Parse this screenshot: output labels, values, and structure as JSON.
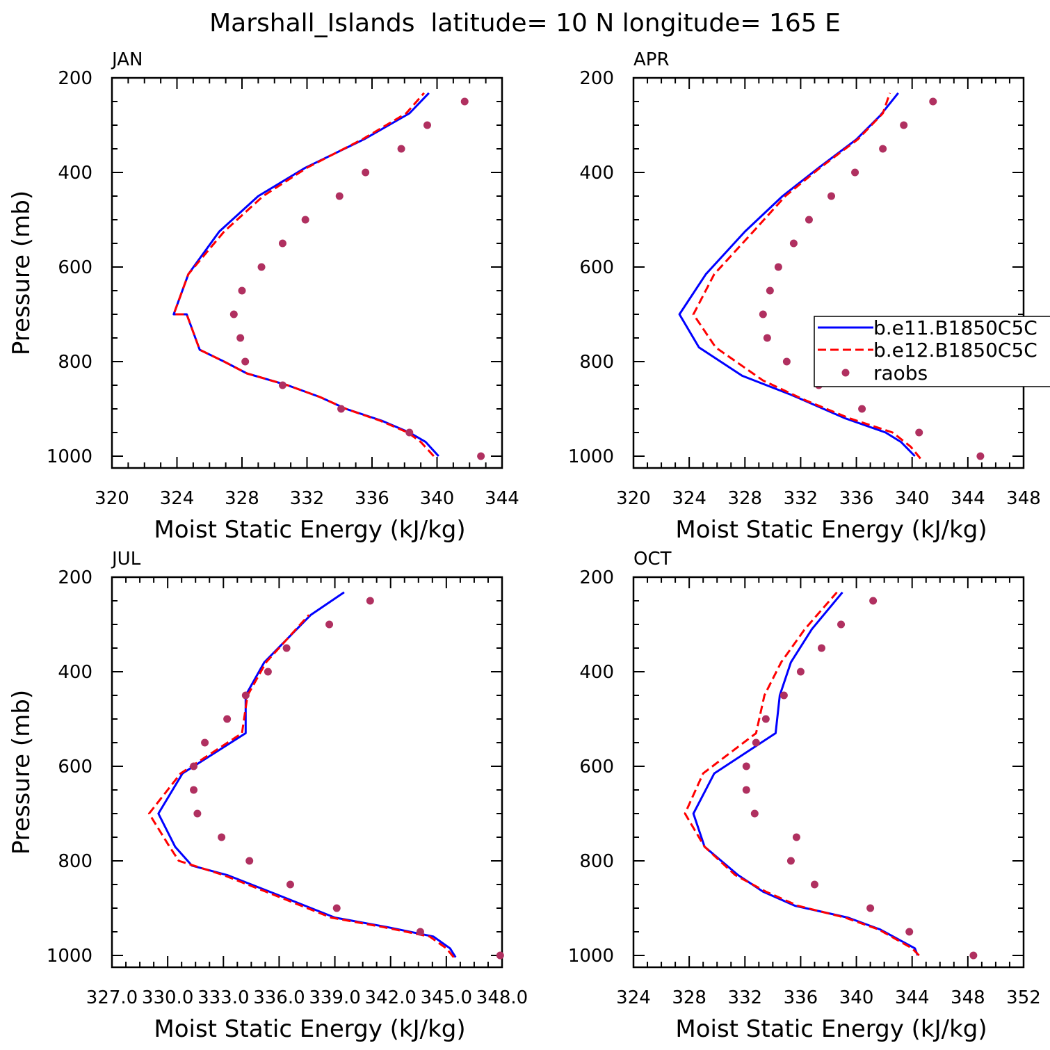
{
  "title": "Marshall_Islands  latitude= 10 N longitude= 165 E",
  "colors": {
    "case1": "#0000ff",
    "case2": "#ff0000",
    "raobs": "#b03060",
    "axis": "#000000"
  },
  "legend": {
    "entries": [
      "b.e11.B1850C5C",
      "b.e12.B1850C5C",
      "raobs"
    ],
    "placement": "right-middle of APR panel"
  },
  "chart_data": [
    {
      "type": "line",
      "panel": "JAN",
      "xlabel": "Moist Static Energy (kJ/kg)",
      "ylabel": "Pressure (mb)",
      "xlim": [
        320,
        344
      ],
      "ylim": [
        1025,
        200
      ],
      "y_inverted": true,
      "xticks": [
        "320",
        "324",
        "328",
        "332",
        "336",
        "340",
        "344"
      ],
      "yticks": [
        "200",
        "400",
        "600",
        "800",
        "1000"
      ],
      "series": [
        {
          "name": "b.e11.B1850C5C",
          "style": "solid",
          "x": [
            340.1,
            339.3,
            338.3,
            336.6,
            334.4,
            332.8,
            330.8,
            328.3,
            326.9,
            325.4,
            324.6,
            323.8,
            324.7,
            326.6,
            329.0,
            331.9,
            335.5,
            338.3,
            339.5
          ],
          "y": [
            1000,
            970,
            950,
            925,
            900,
            875,
            850,
            825,
            800,
            775,
            700,
            700,
            615,
            525,
            450,
            390,
            330,
            275,
            232
          ]
        },
        {
          "name": "b.e12.B1850C5C",
          "style": "dashed",
          "x": [
            339.8,
            339.0,
            338.2,
            336.5,
            334.4,
            332.8,
            330.8,
            328.3,
            326.9,
            325.4,
            324.6,
            323.8,
            324.7,
            326.9,
            329.3,
            332.0,
            335.4,
            338.1,
            339.2
          ],
          "y": [
            1000,
            970,
            950,
            925,
            900,
            875,
            850,
            825,
            800,
            775,
            700,
            700,
            615,
            525,
            450,
            390,
            330,
            275,
            232
          ]
        },
        {
          "name": "raobs",
          "style": "markers",
          "x": [
            342.7,
            338.3,
            334.1,
            330.5,
            328.2,
            327.9,
            327.5,
            328.0,
            329.2,
            330.5,
            331.9,
            334.0,
            335.6,
            337.8,
            339.4,
            341.7
          ],
          "y": [
            1000,
            950,
            900,
            850,
            800,
            750,
            700,
            650,
            600,
            550,
            500,
            450,
            400,
            350,
            300,
            250
          ]
        }
      ]
    },
    {
      "type": "line",
      "panel": "APR",
      "xlabel": "Moist Static Energy (kJ/kg)",
      "ylabel": "",
      "xlim": [
        320,
        348
      ],
      "ylim": [
        1025,
        200
      ],
      "y_inverted": true,
      "xticks": [
        "320",
        "324",
        "328",
        "332",
        "336",
        "340",
        "344",
        "348"
      ],
      "yticks": [
        "200",
        "400",
        "600",
        "800",
        "1000"
      ],
      "series": [
        {
          "name": "b.e11.B1850C5C",
          "style": "solid",
          "x": [
            340.2,
            339.2,
            338.1,
            335.2,
            331.3,
            327.8,
            324.7,
            323.3,
            325.2,
            328.0,
            330.7,
            333.3,
            336.0,
            337.7,
            339.0
          ],
          "y": [
            1000,
            970,
            950,
            920,
            870,
            830,
            770,
            700,
            615,
            525,
            450,
            390,
            330,
            280,
            232
          ]
        },
        {
          "name": "b.e12.B1850C5C",
          "style": "dashed",
          "x": [
            340.6,
            339.9,
            338.6,
            335.5,
            332.2,
            329.3,
            325.9,
            324.3,
            325.8,
            328.6,
            330.9,
            333.4,
            336.1,
            337.9,
            338.4
          ],
          "y": [
            1005,
            980,
            950,
            920,
            880,
            840,
            770,
            700,
            615,
            525,
            450,
            390,
            330,
            275,
            232
          ]
        },
        {
          "name": "raobs",
          "style": "markers",
          "x": [
            344.9,
            340.5,
            336.4,
            333.3,
            331.0,
            329.6,
            329.3,
            329.8,
            330.4,
            331.5,
            332.6,
            334.2,
            335.9,
            337.9,
            339.4,
            341.5
          ],
          "y": [
            1000,
            950,
            900,
            850,
            800,
            750,
            700,
            650,
            600,
            550,
            500,
            450,
            400,
            350,
            300,
            250
          ]
        }
      ]
    },
    {
      "type": "line",
      "panel": "JUL",
      "xlabel": "Moist Static Energy (kJ/kg)",
      "ylabel": "Pressure (mb)",
      "xlim": [
        327.0,
        348.0
      ],
      "ylim": [
        1025,
        200
      ],
      "y_inverted": true,
      "xticks": [
        "327.0",
        "330.0",
        "333.0",
        "336.0",
        "339.0",
        "342.0",
        "345.0",
        "348.0"
      ],
      "yticks": [
        "200",
        "400",
        "600",
        "800",
        "1000"
      ],
      "series": [
        {
          "name": "b.e11.B1850C5C",
          "style": "solid",
          "x": [
            345.5,
            345.2,
            344.3,
            341.8,
            339.0,
            335.8,
            333.2,
            331.3,
            330.4,
            329.5,
            330.8,
            334.2,
            334.2,
            335.2,
            337.7,
            339.5
          ],
          "y": [
            1004,
            985,
            960,
            940,
            920,
            870,
            830,
            810,
            770,
            700,
            615,
            530,
            450,
            380,
            280,
            232
          ]
        },
        {
          "name": "b.e12.B1850C5C",
          "style": "dashed",
          "x": [
            345.4,
            345.0,
            344.1,
            341.6,
            338.8,
            335.6,
            333.0,
            330.6,
            330.1,
            329.0,
            330.7,
            334.0,
            334.3,
            335.3,
            337.6
          ],
          "y": [
            1004,
            985,
            960,
            940,
            920,
            870,
            830,
            800,
            770,
            700,
            615,
            530,
            450,
            380,
            280
          ]
        },
        {
          "name": "raobs",
          "style": "markers",
          "x": [
            347.9,
            343.6,
            339.1,
            336.6,
            334.4,
            332.9,
            331.6,
            331.4,
            331.4,
            332.0,
            333.2,
            334.2,
            335.4,
            336.4,
            338.7,
            340.9
          ],
          "y": [
            1000,
            950,
            900,
            850,
            800,
            750,
            700,
            650,
            600,
            550,
            500,
            450,
            400,
            350,
            300,
            250
          ]
        }
      ]
    },
    {
      "type": "line",
      "panel": "OCT",
      "xlabel": "Moist Static Energy (kJ/kg)",
      "ylabel": "",
      "xlim": [
        324,
        352
      ],
      "ylim": [
        1025,
        200
      ],
      "y_inverted": true,
      "xticks": [
        "324",
        "328",
        "332",
        "336",
        "340",
        "344",
        "348",
        "352"
      ],
      "yticks": [
        "200",
        "400",
        "600",
        "800",
        "1000"
      ],
      "series": [
        {
          "name": "b.e11.B1850C5C",
          "style": "solid",
          "x": [
            344.4,
            344.2,
            341.7,
            339.4,
            335.6,
            333.3,
            331.5,
            329.1,
            328.3,
            329.8,
            334.2,
            334.5,
            335.3,
            336.8,
            339.0
          ],
          "y": [
            1000,
            985,
            945,
            920,
            895,
            865,
            830,
            770,
            700,
            615,
            530,
            450,
            380,
            310,
            232
          ]
        },
        {
          "name": "b.e12.B1850C5C",
          "style": "dashed",
          "x": [
            344.5,
            344.0,
            341.6,
            339.2,
            335.8,
            333.5,
            331.3,
            329.1,
            327.7,
            329.0,
            332.8,
            333.4,
            334.6,
            336.3,
            338.6
          ],
          "y": [
            1000,
            985,
            945,
            920,
            895,
            865,
            830,
            770,
            700,
            615,
            530,
            450,
            380,
            310,
            232
          ]
        },
        {
          "name": "raobs",
          "style": "markers",
          "x": [
            348.4,
            343.8,
            341.0,
            337.0,
            335.3,
            335.7,
            332.7,
            332.1,
            332.1,
            332.8,
            333.5,
            334.8,
            336.0,
            337.5,
            338.9,
            341.2
          ],
          "y": [
            1000,
            950,
            900,
            850,
            800,
            750,
            700,
            650,
            600,
            550,
            500,
            450,
            400,
            350,
            300,
            250
          ]
        }
      ]
    }
  ]
}
